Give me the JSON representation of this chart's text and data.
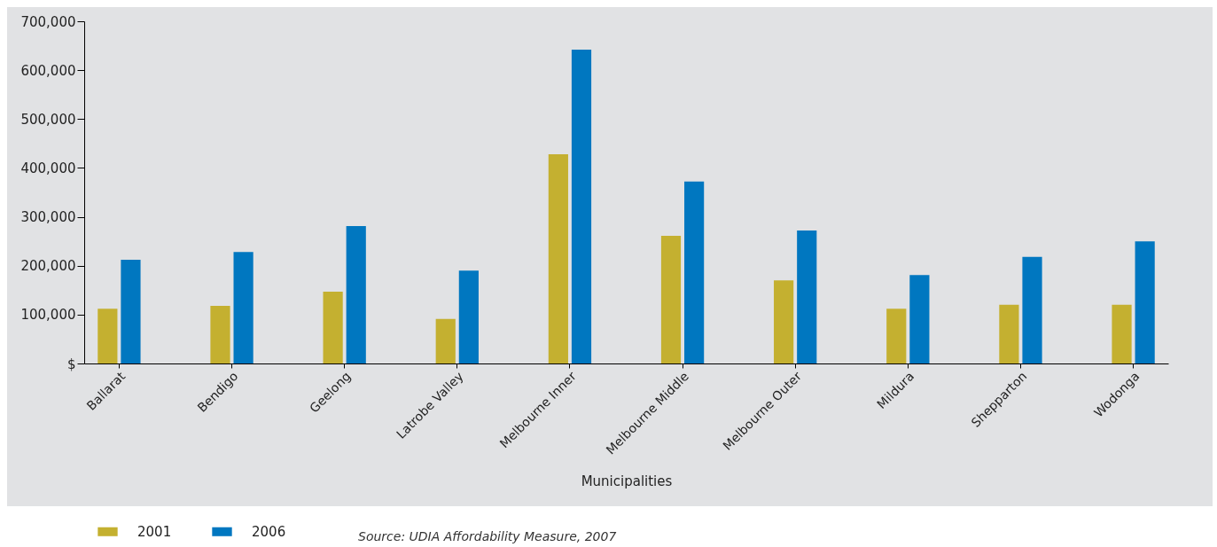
{
  "chart_data": {
    "type": "bar",
    "xlabel": "Municipalities",
    "categories": [
      "Ballarat",
      "Bendigo",
      "Geelong",
      "Latrobe Valley",
      "Melbourne Inner",
      "Melbourne Middle",
      "Melbourne Outer",
      "Mildura",
      "Shepparton",
      "Wodonga"
    ],
    "series": [
      {
        "name": "2001",
        "color": "#c4b030",
        "values": [
          112000,
          118000,
          147000,
          91000,
          428000,
          261000,
          170000,
          112000,
          120000,
          120000
        ]
      },
      {
        "name": "2006",
        "color": "#0077c0",
        "values": [
          212000,
          228000,
          281000,
          190000,
          642000,
          372000,
          272000,
          181000,
          218000,
          250000
        ]
      }
    ],
    "ylim": [
      0,
      700000
    ],
    "yticks": [
      {
        "value": 0,
        "label": "$"
      },
      {
        "value": 100000,
        "label": "100,000"
      },
      {
        "value": 200000,
        "label": "200,000"
      },
      {
        "value": 300000,
        "label": "300,000"
      },
      {
        "value": 400000,
        "label": "400,000"
      },
      {
        "value": 500000,
        "label": "500,000"
      },
      {
        "value": 600000,
        "label": "600,000"
      },
      {
        "value": 700000,
        "label": "700,000"
      }
    ],
    "grid": false,
    "legend": "bottom left",
    "annotations": [
      "Source: UDIA Affordability Measure, 2007"
    ]
  }
}
